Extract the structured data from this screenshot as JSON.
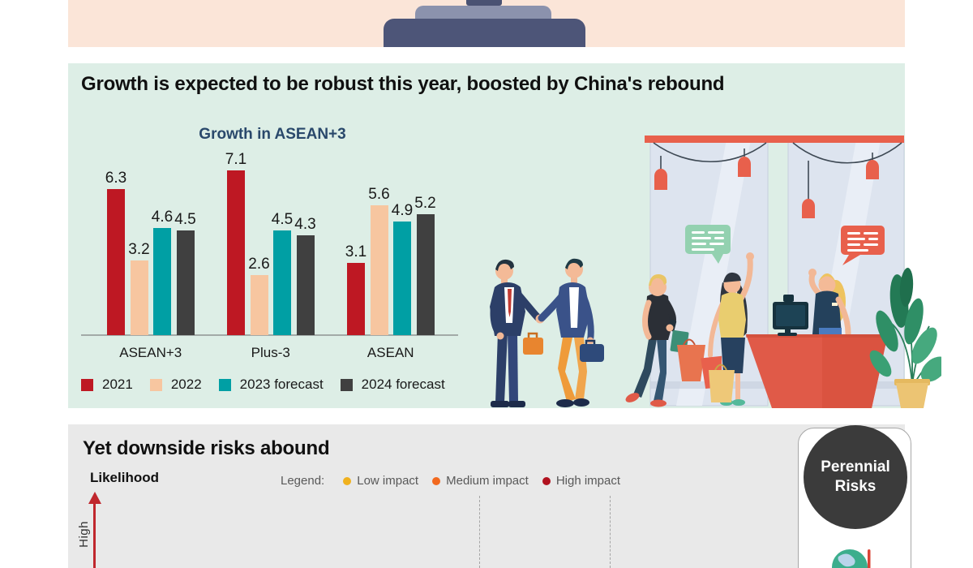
{
  "colors": {
    "accent_orange": "#e8604c",
    "top_band_bg": "#fbe5d8",
    "growth_section_bg": "#ddeee6",
    "risks_section_bg": "#e9e9e9",
    "chart_title_color": "#29486b",
    "risk_circle_bg": "#3b3b3b",
    "arrow_red": "#c0272d"
  },
  "top_band": {
    "illustration": "podium"
  },
  "growth_section": {
    "title": "Growth is expected to be robust this year, boosted by China's rebound",
    "illustration": "storefront with shoppers, handshake and receptionist"
  },
  "chart_data": {
    "type": "bar",
    "title": "Growth in ASEAN+3",
    "categories": [
      "ASEAN+3",
      "Plus-3",
      "ASEAN"
    ],
    "series": [
      {
        "name": "2021",
        "color": "#be1823",
        "values": [
          6.3,
          7.1,
          3.1
        ]
      },
      {
        "name": "2022",
        "color": "#f7c6a0",
        "values": [
          3.2,
          2.6,
          5.6
        ]
      },
      {
        "name": "2023 forecast",
        "color": "#009fa4",
        "values": [
          4.6,
          4.5,
          4.9
        ]
      },
      {
        "name": "2024 forecast",
        "color": "#404040",
        "values": [
          4.5,
          4.3,
          5.2
        ]
      }
    ],
    "ylim": [
      0,
      7.5
    ],
    "grid": false,
    "value_labels": true,
    "legend_position": "bottom"
  },
  "risks_section": {
    "title": "Yet downside risks abound",
    "y_axis_label": "Likelihood",
    "y_axis_end_label": "High",
    "legend_title": "Legend:",
    "impact_legend": [
      {
        "label": "Low impact",
        "color": "#f0b11e"
      },
      {
        "label": "Medium impact",
        "color": "#f2691f"
      },
      {
        "label": "High impact",
        "color": "#b1121f"
      }
    ],
    "perennial_card": {
      "line1": "Perennial",
      "line2": "Risks",
      "icon": "globe-thermometer"
    }
  }
}
